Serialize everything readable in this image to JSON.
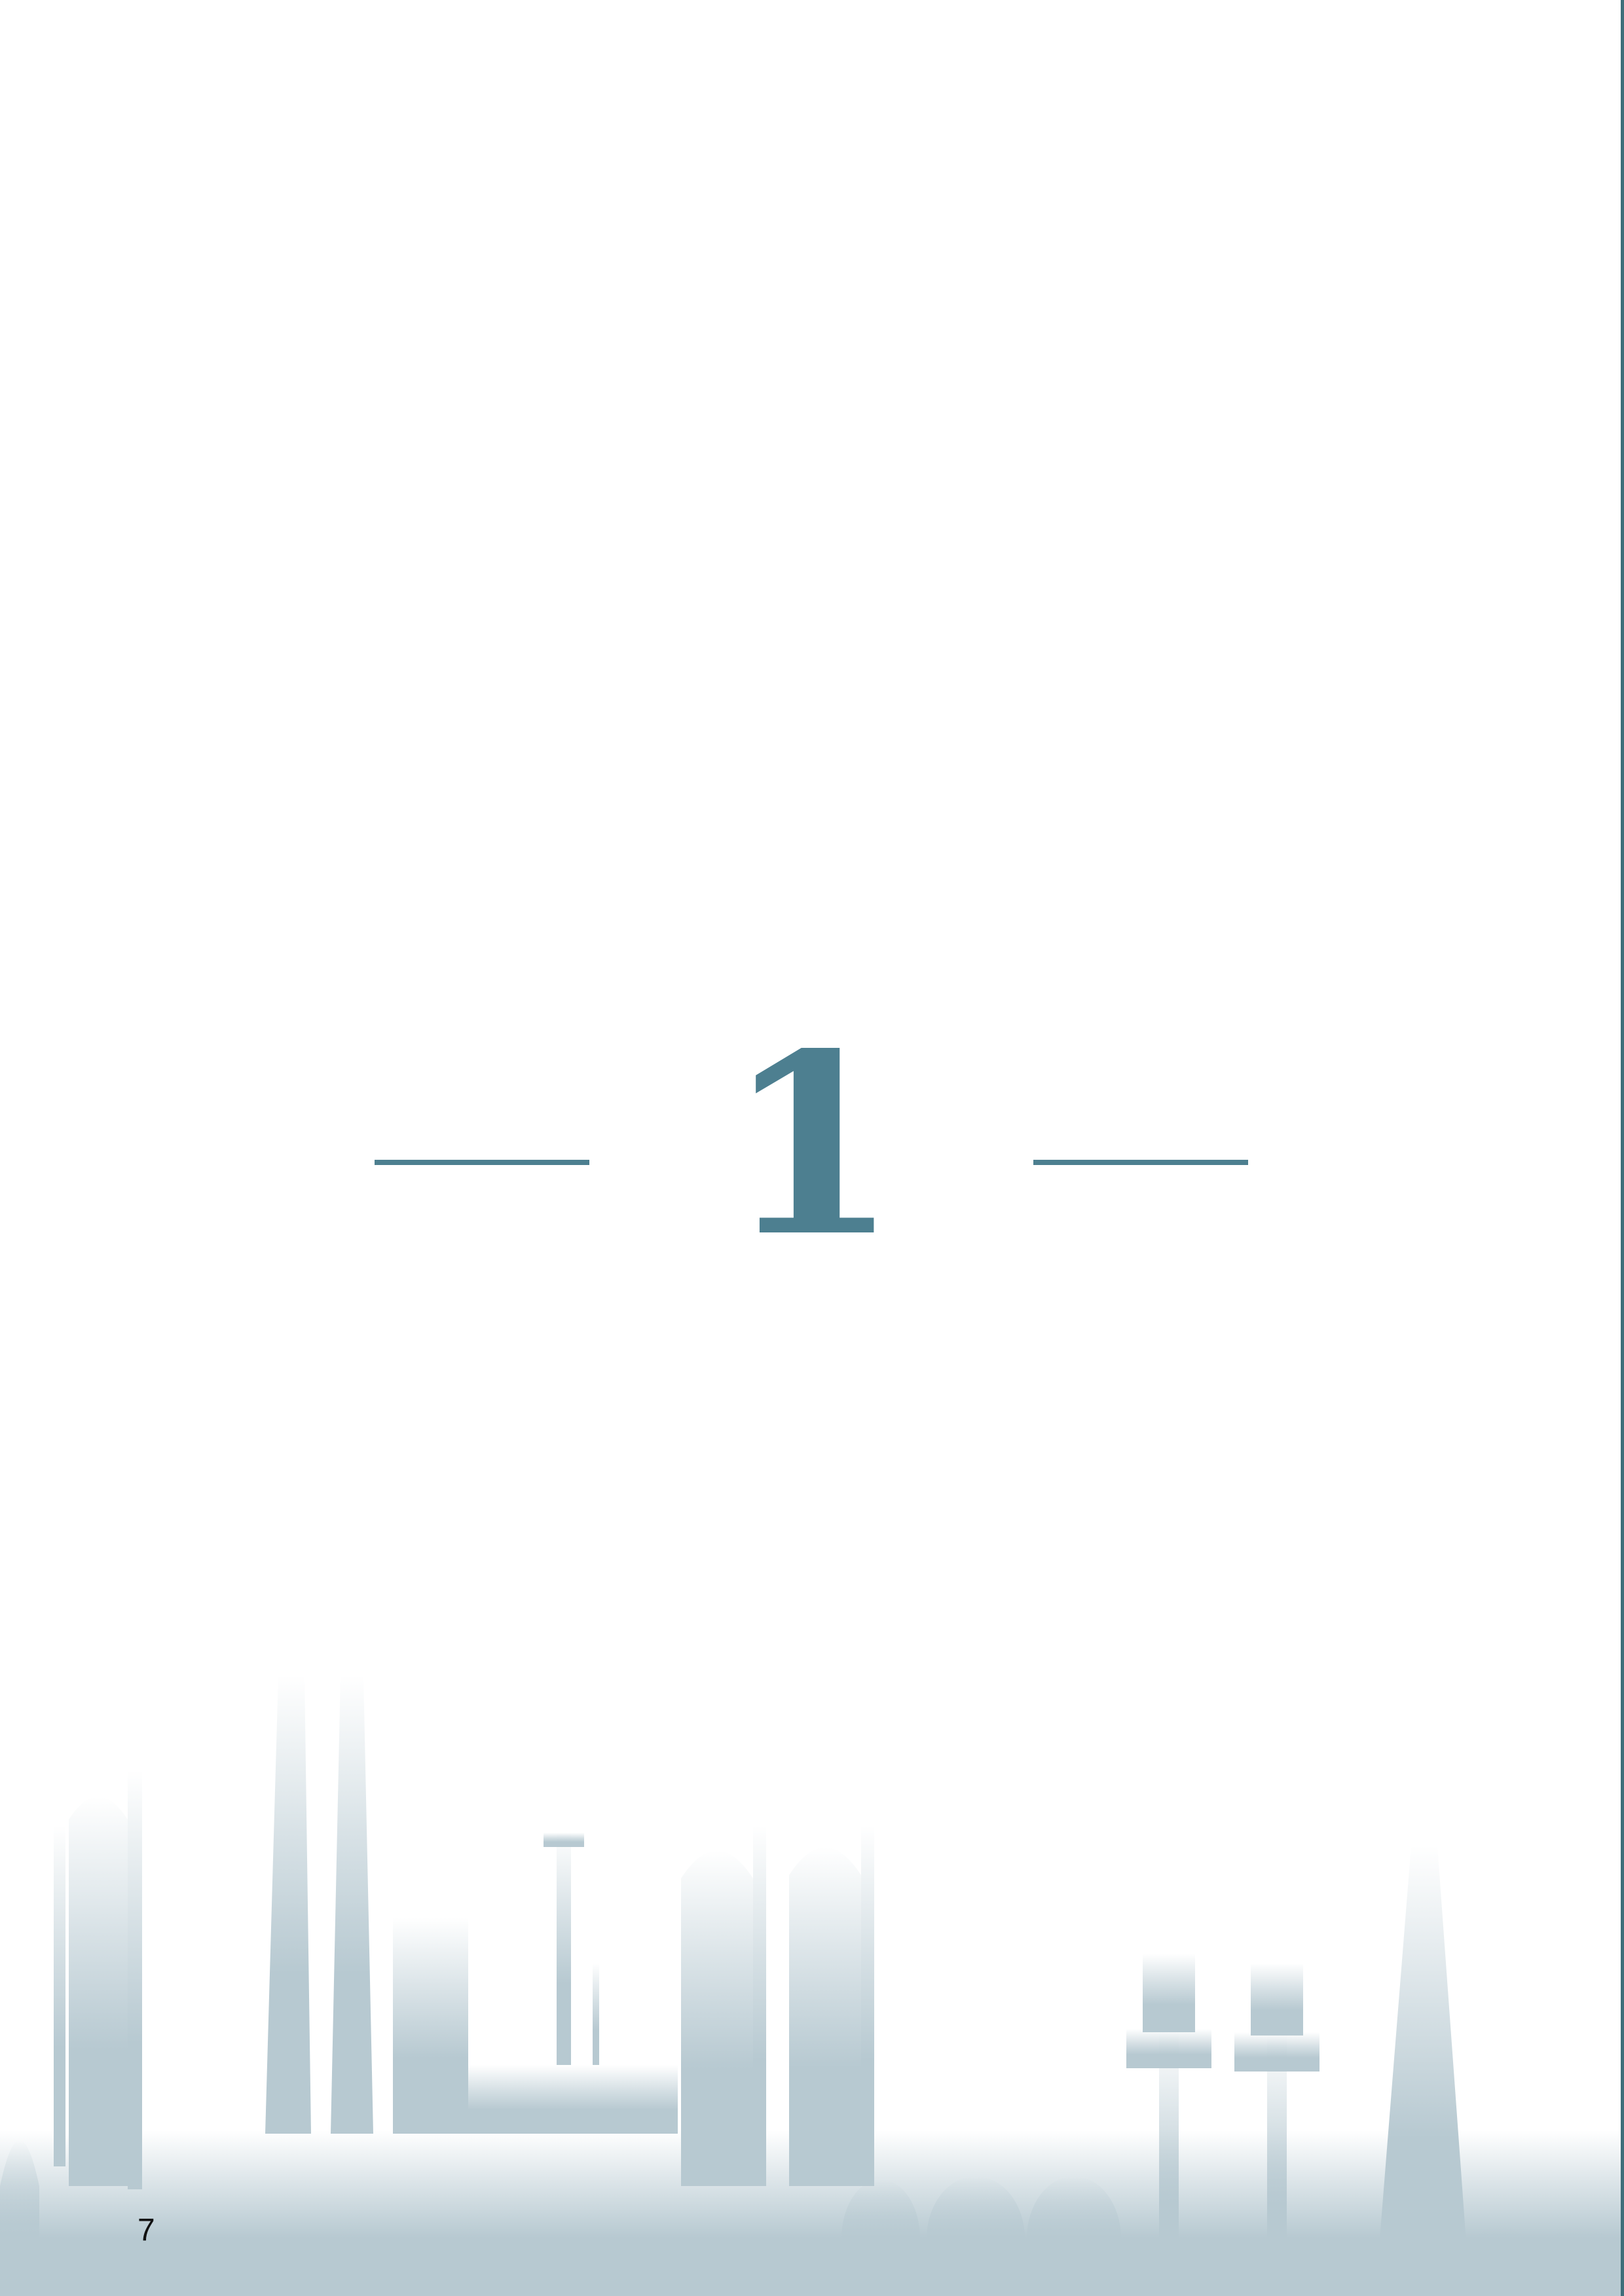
{
  "chapter": {
    "number": "1"
  },
  "footer": {
    "page_number": "7"
  },
  "illustration": {
    "icon": "industrial-plant-skyline-icon"
  },
  "colors": {
    "accent": "#4d7f90",
    "edge_rule": "#3f6e7a",
    "skyline": "#b7c9d1",
    "background": "#ffffff"
  }
}
